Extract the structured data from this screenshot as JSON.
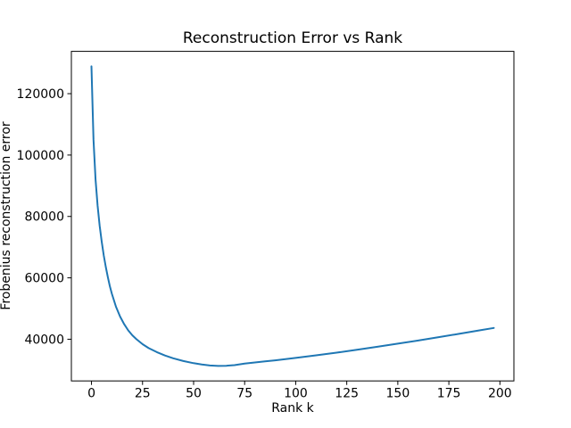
{
  "figure": {
    "title": "Reconstruction Error vs Rank",
    "xlabel": "Rank k",
    "ylabel": "Frobenius reconstruction error"
  },
  "chart_data": {
    "type": "line",
    "title": "Reconstruction Error vs Rank",
    "xlabel": "Rank k",
    "ylabel": "Frobenius reconstruction error",
    "grid": false,
    "legend": "none",
    "line_color": "#1f77b4",
    "x_ticks": [
      0,
      25,
      50,
      75,
      100,
      125,
      150,
      175,
      200
    ],
    "y_ticks": [
      40000,
      60000,
      80000,
      100000,
      120000
    ],
    "xlim": [
      -9.85,
      206.85
    ],
    "ylim": [
      26420,
      133780
    ],
    "series": [
      {
        "name": "frobenius-reconstruction-error",
        "color": "#1f77b4",
        "points": [
          [
            0,
            128900
          ],
          [
            1,
            105000
          ],
          [
            2,
            92000
          ],
          [
            3,
            83500
          ],
          [
            4,
            77000
          ],
          [
            5,
            71800
          ],
          [
            6,
            67300
          ],
          [
            7,
            63500
          ],
          [
            8,
            60200
          ],
          [
            9,
            57300
          ],
          [
            10,
            54800
          ],
          [
            12,
            50600
          ],
          [
            14,
            47400
          ],
          [
            16,
            44900
          ],
          [
            18,
            42900
          ],
          [
            20,
            41300
          ],
          [
            22,
            40000
          ],
          [
            25,
            38400
          ],
          [
            28,
            37100
          ],
          [
            32,
            35800
          ],
          [
            36,
            34700
          ],
          [
            40,
            33800
          ],
          [
            45,
            32900
          ],
          [
            50,
            32200
          ],
          [
            54,
            31800
          ],
          [
            58,
            31450
          ],
          [
            62,
            31300
          ],
          [
            66,
            31350
          ],
          [
            70,
            31550
          ],
          [
            75,
            32050
          ],
          [
            80,
            32430
          ],
          [
            85,
            32780
          ],
          [
            90,
            33140
          ],
          [
            95,
            33520
          ],
          [
            100,
            33920
          ],
          [
            110,
            34750
          ],
          [
            120,
            35640
          ],
          [
            130,
            36580
          ],
          [
            140,
            37540
          ],
          [
            150,
            38550
          ],
          [
            160,
            39580
          ],
          [
            170,
            40670
          ],
          [
            180,
            41770
          ],
          [
            190,
            42890
          ],
          [
            197,
            43680
          ]
        ]
      }
    ],
    "annotations": {
      "start_value": 128900,
      "min_value": 31300,
      "min_rank": 62,
      "end_value": 43680
    }
  }
}
